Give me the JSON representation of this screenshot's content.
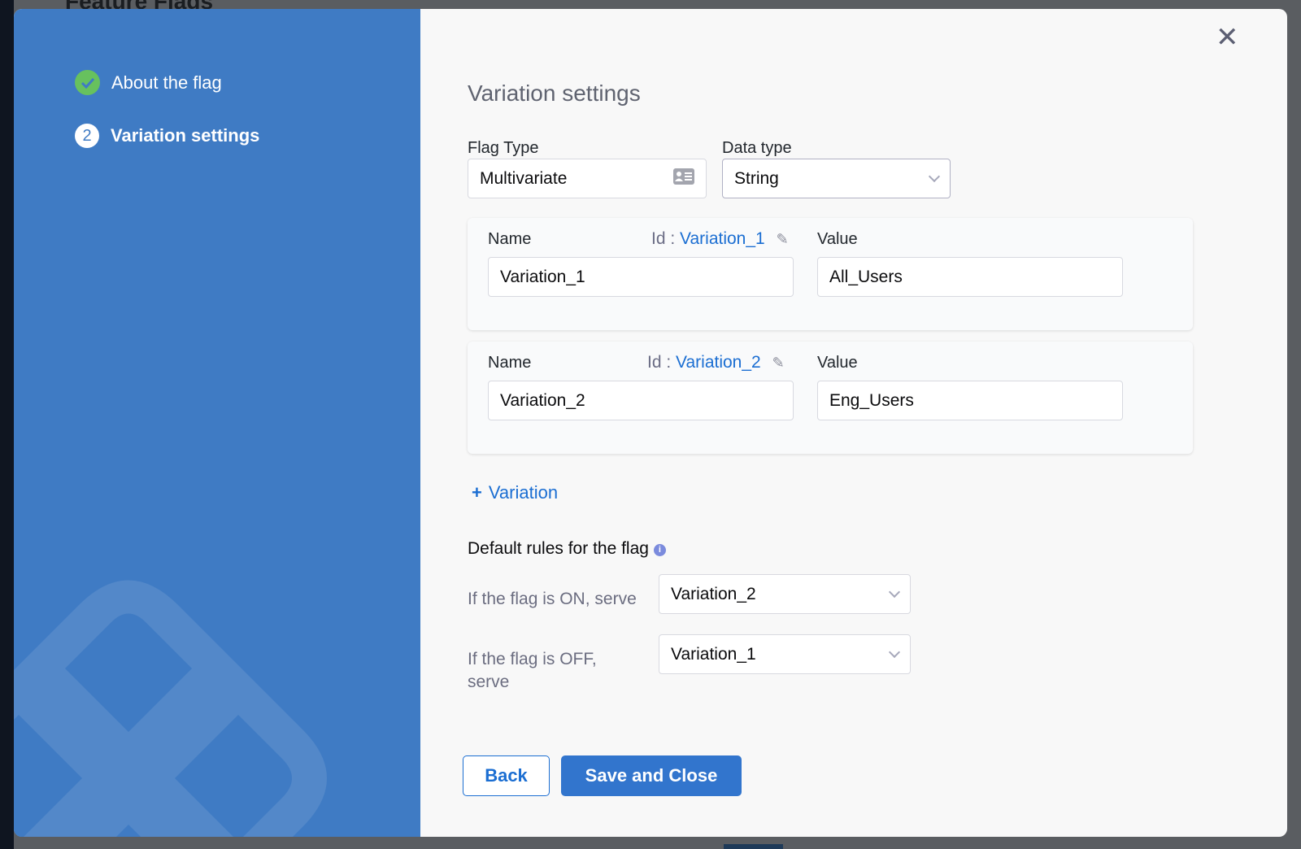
{
  "background": {
    "page_title": "Feature Flags"
  },
  "wizard": {
    "steps": [
      {
        "label": "About the flag",
        "status": "complete",
        "icon": "check-circle-icon"
      },
      {
        "label": "Variation settings",
        "status": "current",
        "number": "2"
      }
    ]
  },
  "form": {
    "title": "Variation settings",
    "flag_type": {
      "label": "Flag Type",
      "value": "Multivariate",
      "icon": "id-card-icon"
    },
    "data_type": {
      "label": "Data type",
      "value": "String"
    },
    "variations": [
      {
        "name_label": "Name",
        "id_label": "Id :",
        "id": "Variation_1",
        "name": "Variation_1",
        "value_label": "Value",
        "value": "All_Users"
      },
      {
        "name_label": "Name",
        "id_label": "Id :",
        "id": "Variation_2",
        "name": "Variation_2",
        "value_label": "Value",
        "value": "Eng_Users"
      }
    ],
    "add_variation": {
      "icon": "+",
      "label": "Variation"
    },
    "default_rules": {
      "title": "Default rules for the flag",
      "on_label": "If the flag is ON, serve",
      "on_value": "Variation_2",
      "off_label": "If the flag is OFF, serve",
      "off_value": "Variation_1"
    }
  },
  "buttons": {
    "back": "Back",
    "save": "Save and Close",
    "close": "✕"
  },
  "colors": {
    "panel": "#3f7bc4",
    "primary": "#3275cd",
    "link": "#1b6ed2",
    "success": "#67c15e"
  }
}
